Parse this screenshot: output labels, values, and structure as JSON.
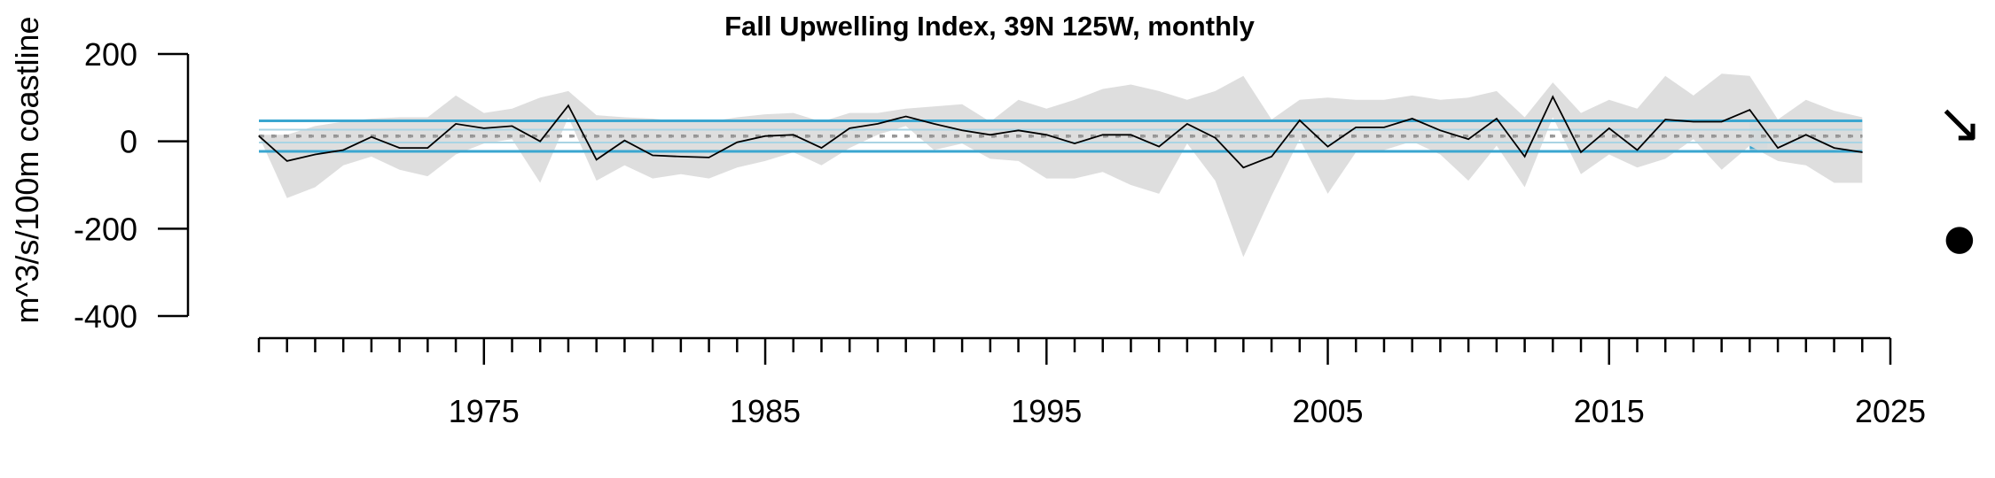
{
  "chart_data": {
    "type": "line",
    "title": "Fall Upwelling Index, 39N 125W, monthly",
    "ylabel": "m^3/s/100m coastline",
    "xlabel": "",
    "ylim": [
      -400,
      200
    ],
    "xlim": [
      1967,
      2025
    ],
    "y_ticks": [
      "200",
      "0",
      "-200",
      "-400"
    ],
    "y_tick_values": [
      200,
      0,
      -200,
      -400
    ],
    "x_tick_labels": [
      "1975",
      "1985",
      "1995",
      "2005",
      "2015",
      "2025"
    ],
    "x_tick_values": [
      1975,
      1985,
      1995,
      2005,
      2015,
      2025
    ],
    "x_minor_start": 1967,
    "x_minor_end": 2025,
    "mean": 12,
    "upper_sd": 47,
    "lower_sd": -23,
    "recent_window": [
      2020,
      2024
    ],
    "trend_symbol": "↘",
    "status_symbol": "●",
    "colors": {
      "series": "#000000",
      "band": "#dcdcdc",
      "sd_line": "#3aa6d0",
      "sd_inner": "#a9d4e4",
      "mean_line": "#999999",
      "recent_shade": "#a6cad8",
      "recent_bar": "#3aa6d0"
    },
    "series": [
      {
        "x": [
          1967,
          1968,
          1969,
          1970,
          1971,
          1972,
          1973,
          1974,
          1975,
          1976,
          1977,
          1978,
          1979,
          1980,
          1981,
          1982,
          1983,
          1984,
          1985,
          1986,
          1987,
          1988,
          1989,
          1990,
          1991,
          1992,
          1993,
          1994,
          1995,
          1996,
          1997,
          1998,
          1999,
          2000,
          2001,
          2002,
          2003,
          2004,
          2005,
          2006,
          2007,
          2008,
          2009,
          2010,
          2011,
          2012,
          2013,
          2014,
          2015,
          2016,
          2017,
          2018,
          2019,
          2020,
          2021,
          2022,
          2023,
          2024
        ],
        "values": [
          12,
          -45,
          -30,
          -20,
          10,
          -15,
          -15,
          40,
          30,
          35,
          0,
          82,
          -42,
          2,
          -32,
          -35,
          -37,
          -2,
          12,
          15,
          -15,
          30,
          40,
          57,
          40,
          25,
          15,
          25,
          15,
          -5,
          15,
          15,
          -12,
          40,
          8,
          -60,
          -35,
          48,
          -12,
          32,
          32,
          52,
          25,
          5,
          52,
          -35,
          102,
          -25,
          30,
          -20,
          50,
          45,
          45,
          72,
          -15,
          15,
          -15,
          -25
        ]
      },
      {
        "name": "upper",
        "values": [
          15,
          15,
          35,
          45,
          52,
          55,
          55,
          105,
          65,
          75,
          100,
          115,
          60,
          55,
          52,
          45,
          45,
          55,
          62,
          65,
          45,
          65,
          65,
          75,
          80,
          85,
          45,
          95,
          75,
          95,
          120,
          130,
          115,
          95,
          115,
          150,
          50,
          95,
          100,
          95,
          95,
          105,
          95,
          100,
          115,
          55,
          135,
          65,
          95,
          75,
          150,
          105,
          155,
          150,
          50,
          95,
          70,
          55
        ]
      },
      {
        "name": "lower",
        "values": [
          12,
          -130,
          -105,
          -55,
          -35,
          -65,
          -80,
          -30,
          -5,
          5,
          -95,
          55,
          -90,
          -55,
          -85,
          -75,
          -85,
          -60,
          -45,
          -25,
          -55,
          -15,
          15,
          35,
          -20,
          -5,
          -40,
          -45,
          -85,
          -85,
          -70,
          -100,
          -120,
          -5,
          -90,
          -265,
          -125,
          5,
          -120,
          -25,
          -20,
          0,
          -30,
          -90,
          -10,
          -105,
          55,
          -75,
          -30,
          -60,
          -40,
          5,
          -65,
          -10,
          -45,
          -55,
          -95,
          -95
        ]
      }
    ]
  }
}
